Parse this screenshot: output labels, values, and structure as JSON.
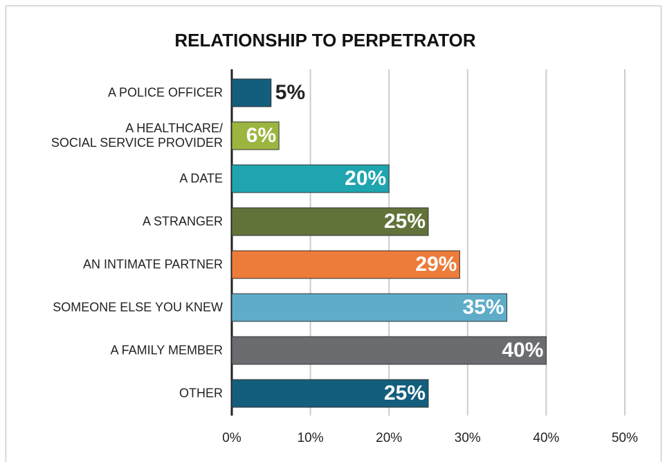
{
  "chart_data": {
    "type": "bar",
    "orientation": "horizontal",
    "title": "RELATIONSHIP TO PERPETRATOR",
    "categories": [
      "A POLICE OFFICER",
      "A HEALTHCARE/\nSOCIAL SERVICE PROVIDER",
      "A DATE",
      "A STRANGER",
      "AN INTIMATE PARTNER",
      "SOMEONE ELSE YOU KNEW",
      "A FAMILY MEMBER",
      "OTHER"
    ],
    "values": [
      5,
      6,
      20,
      25,
      29,
      35,
      40,
      25
    ],
    "value_labels": [
      "5%",
      "6%",
      "20%",
      "25%",
      "29%",
      "35%",
      "40%",
      "25%"
    ],
    "colors": [
      "#135e7c",
      "#9bb53f",
      "#1ea5b0",
      "#62733a",
      "#ed7b3a",
      "#5eacc8",
      "#6b6c6f",
      "#135e7c"
    ],
    "xlim": [
      0,
      50
    ],
    "xticks": [
      {
        "value": 0,
        "label": "0%"
      },
      {
        "value": 10,
        "label": "10%"
      },
      {
        "value": 20,
        "label": "20%"
      },
      {
        "value": 30,
        "label": "30%"
      },
      {
        "value": 40,
        "label": "40%"
      },
      {
        "value": 50,
        "label": "50%"
      }
    ],
    "grid": true
  }
}
